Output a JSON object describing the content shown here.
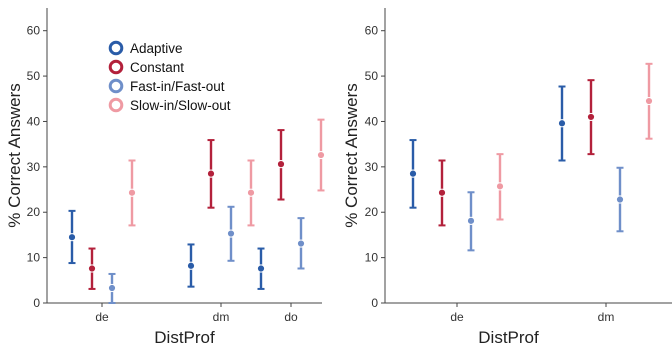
{
  "chart_data": [
    {
      "type": "scatter",
      "error_bars": true,
      "xlabel": "DistProf",
      "ylabel": "% Correct Answers",
      "ylim": [
        0,
        65
      ],
      "yticks": [
        0,
        10,
        20,
        30,
        40,
        50,
        60
      ],
      "categories": [
        "de",
        "dm",
        "do"
      ],
      "legend": "top-left",
      "grid": false,
      "series": [
        {
          "name": "Adaptive",
          "color": "#2a5ca8",
          "values": [
            14.5,
            8.2,
            7.6
          ],
          "lower": [
            8.8,
            3.6,
            3.1
          ],
          "upper": [
            20.3,
            12.9,
            12.0
          ]
        },
        {
          "name": "Constant",
          "color": "#b3213b",
          "values": [
            7.6,
            28.5,
            30.6
          ],
          "lower": [
            3.1,
            21.0,
            22.8
          ],
          "upper": [
            12.0,
            35.9,
            38.1
          ]
        },
        {
          "name": "Fast-in/Fast-out",
          "color": "#6f8fc9",
          "values": [
            3.3,
            15.3,
            13.1
          ],
          "lower": [
            0.0,
            9.3,
            7.6
          ],
          "upper": [
            6.4,
            21.2,
            18.7
          ]
        },
        {
          "name": "Slow-in/Slow-out",
          "color": "#ef9aa3",
          "values": [
            24.3,
            24.3,
            32.6
          ],
          "lower": [
            17.1,
            17.1,
            24.8
          ],
          "upper": [
            31.4,
            31.4,
            40.4
          ]
        }
      ]
    },
    {
      "type": "scatter",
      "error_bars": true,
      "xlabel": "DistProf",
      "ylabel": "% Correct Answers",
      "ylim": [
        0,
        65
      ],
      "yticks": [
        0,
        10,
        20,
        30,
        40,
        50,
        60
      ],
      "categories": [
        "de",
        "dm"
      ],
      "grid": false,
      "series": [
        {
          "name": "Adaptive",
          "color": "#2a5ca8",
          "values": [
            28.5,
            39.6
          ],
          "lower": [
            21.0,
            31.4
          ],
          "upper": [
            35.9,
            47.7
          ]
        },
        {
          "name": "Constant",
          "color": "#b3213b",
          "values": [
            24.3,
            41.0
          ],
          "lower": [
            17.1,
            32.8
          ],
          "upper": [
            31.4,
            49.1
          ]
        },
        {
          "name": "Fast-in/Fast-out",
          "color": "#6f8fc9",
          "values": [
            18.1,
            22.8
          ],
          "lower": [
            11.6,
            15.8
          ],
          "upper": [
            24.4,
            29.8
          ]
        },
        {
          "name": "Slow-in/Slow-out",
          "color": "#ef9aa3",
          "values": [
            25.7,
            44.5
          ],
          "lower": [
            18.4,
            36.2
          ],
          "upper": [
            32.8,
            52.7
          ]
        }
      ]
    }
  ]
}
